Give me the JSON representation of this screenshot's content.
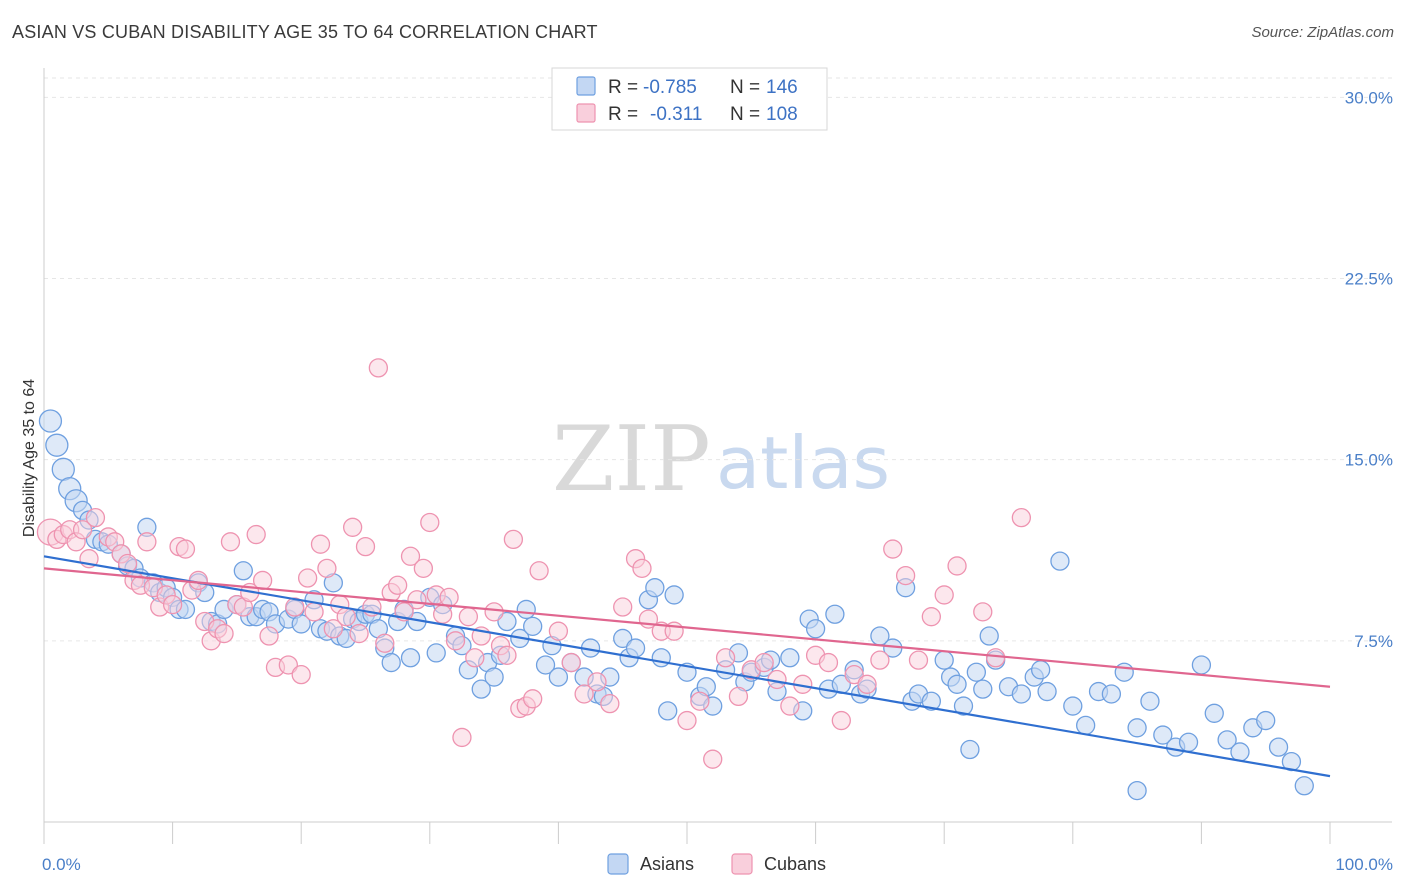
{
  "title": "ASIAN VS CUBAN DISABILITY AGE 35 TO 64 CORRELATION CHART",
  "source": "Source: ZipAtlas.com",
  "watermark": {
    "zip": "ZIP",
    "atlas": "atlas"
  },
  "colors": {
    "asian": "#6fa0e0",
    "asian_fill": "#c3d7f3",
    "asian_line": "#2f6fd0",
    "cuban": "#ee93b0",
    "cuban_fill": "#f9cfdc",
    "cuban_line": "#e0668f"
  },
  "legend": {
    "rows": [
      {
        "r_label": "R =",
        "r_value": "-0.785",
        "n_label": "N =",
        "n_value": "146"
      },
      {
        "r_label": "R =",
        "r_value": "-0.311",
        "n_label": "N =",
        "n_value": "108"
      }
    ]
  },
  "bottom_legend": [
    "Asians",
    "Cubans"
  ],
  "chart_data": {
    "type": "scatter",
    "title": "ASIAN VS CUBAN DISABILITY AGE 35 TO 64 CORRELATION CHART",
    "xlabel": "",
    "ylabel": "Disability Age 35 to 64",
    "xlim": [
      0,
      100
    ],
    "ylim": [
      0,
      30
    ],
    "x_tick_labels": [
      "0.0%",
      "100.0%"
    ],
    "y_ticks": [
      7.5,
      15.0,
      22.5,
      30.0
    ],
    "y_tick_labels": [
      "7.5%",
      "15.0%",
      "22.5%",
      "30.0%"
    ],
    "grid": true,
    "legend_position": "top-center",
    "series": [
      {
        "name": "Asians",
        "R": -0.785,
        "N": 146,
        "trend": {
          "x": [
            0,
            100
          ],
          "y": [
            11.0,
            1.9
          ]
        },
        "points": [
          [
            0.5,
            16.6
          ],
          [
            1,
            15.6
          ],
          [
            1.5,
            14.6
          ],
          [
            2,
            13.8
          ],
          [
            2.5,
            13.3
          ],
          [
            3,
            12.9
          ],
          [
            3.5,
            12.5
          ],
          [
            4,
            11.7
          ],
          [
            4.5,
            11.6
          ],
          [
            5,
            11.5
          ],
          [
            6,
            11.1
          ],
          [
            6.5,
            10.6
          ],
          [
            7,
            10.5
          ],
          [
            7.5,
            10.1
          ],
          [
            8,
            12.2
          ],
          [
            8.5,
            9.9
          ],
          [
            9,
            9.5
          ],
          [
            9.5,
            9.7
          ],
          [
            10,
            9.3
          ],
          [
            10.5,
            8.8
          ],
          [
            11,
            8.8
          ],
          [
            12,
            9.9
          ],
          [
            12.5,
            9.5
          ],
          [
            13,
            8.3
          ],
          [
            13.5,
            8.2
          ],
          [
            14,
            8.8
          ],
          [
            15,
            9.0
          ],
          [
            15.5,
            10.4
          ],
          [
            16,
            8.5
          ],
          [
            16.5,
            8.5
          ],
          [
            17,
            8.8
          ],
          [
            17.5,
            8.7
          ],
          [
            18,
            8.2
          ],
          [
            19,
            8.4
          ],
          [
            19.5,
            8.8
          ],
          [
            20,
            8.2
          ],
          [
            21,
            9.2
          ],
          [
            21.5,
            8.0
          ],
          [
            22,
            7.9
          ],
          [
            22.5,
            9.9
          ],
          [
            23,
            7.7
          ],
          [
            23.5,
            7.6
          ],
          [
            24,
            8.4
          ],
          [
            24.5,
            8.3
          ],
          [
            25,
            8.6
          ],
          [
            25.5,
            8.6
          ],
          [
            26,
            8.0
          ],
          [
            26.5,
            7.2
          ],
          [
            27,
            6.6
          ],
          [
            27.5,
            8.3
          ],
          [
            28,
            8.8
          ],
          [
            28.5,
            6.8
          ],
          [
            29,
            8.3
          ],
          [
            30,
            9.3
          ],
          [
            30.5,
            7.0
          ],
          [
            31,
            9.0
          ],
          [
            32,
            7.7
          ],
          [
            32.5,
            7.3
          ],
          [
            33,
            6.3
          ],
          [
            34,
            5.5
          ],
          [
            34.5,
            6.6
          ],
          [
            35,
            6.0
          ],
          [
            35.5,
            6.9
          ],
          [
            36,
            8.3
          ],
          [
            37,
            7.6
          ],
          [
            37.5,
            8.8
          ],
          [
            38,
            8.1
          ],
          [
            39,
            6.5
          ],
          [
            39.5,
            7.3
          ],
          [
            40,
            6.0
          ],
          [
            41,
            6.6
          ],
          [
            42,
            6.0
          ],
          [
            42.5,
            7.2
          ],
          [
            43,
            5.3
          ],
          [
            43.5,
            5.2
          ],
          [
            44,
            6.0
          ],
          [
            45,
            7.6
          ],
          [
            45.5,
            6.8
          ],
          [
            46,
            7.2
          ],
          [
            47,
            9.2
          ],
          [
            47.5,
            9.7
          ],
          [
            48,
            6.8
          ],
          [
            48.5,
            4.6
          ],
          [
            49,
            9.4
          ],
          [
            50,
            6.2
          ],
          [
            51,
            5.2
          ],
          [
            51.5,
            5.6
          ],
          [
            52,
            4.8
          ],
          [
            53,
            6.3
          ],
          [
            54,
            7.0
          ],
          [
            54.5,
            5.8
          ],
          [
            55,
            6.2
          ],
          [
            56,
            6.4
          ],
          [
            56.5,
            6.7
          ],
          [
            57,
            5.4
          ],
          [
            58,
            6.8
          ],
          [
            59,
            4.6
          ],
          [
            59.5,
            8.4
          ],
          [
            60,
            8.0
          ],
          [
            61,
            5.5
          ],
          [
            61.5,
            8.6
          ],
          [
            62,
            5.7
          ],
          [
            63,
            6.3
          ],
          [
            63.5,
            5.3
          ],
          [
            64,
            5.5
          ],
          [
            65,
            7.7
          ],
          [
            66,
            7.2
          ],
          [
            67,
            9.7
          ],
          [
            67.5,
            5.0
          ],
          [
            68,
            5.3
          ],
          [
            69,
            5.0
          ],
          [
            70,
            6.7
          ],
          [
            70.5,
            6.0
          ],
          [
            71,
            5.7
          ],
          [
            71.5,
            4.8
          ],
          [
            72,
            3.0
          ],
          [
            72.5,
            6.2
          ],
          [
            73,
            5.5
          ],
          [
            73.5,
            7.7
          ],
          [
            74,
            6.7
          ],
          [
            75,
            5.6
          ],
          [
            76,
            5.3
          ],
          [
            77,
            6.0
          ],
          [
            77.5,
            6.3
          ],
          [
            78,
            5.4
          ],
          [
            79,
            10.8
          ],
          [
            80,
            4.8
          ],
          [
            81,
            4.0
          ],
          [
            82,
            5.4
          ],
          [
            83,
            5.3
          ],
          [
            84,
            6.2
          ],
          [
            85,
            3.9
          ],
          [
            86,
            5.0
          ],
          [
            87,
            3.6
          ],
          [
            88,
            3.1
          ],
          [
            89,
            3.3
          ],
          [
            90,
            6.5
          ],
          [
            91,
            4.5
          ],
          [
            92,
            3.4
          ],
          [
            93,
            2.9
          ],
          [
            94,
            3.9
          ],
          [
            95,
            4.2
          ],
          [
            96,
            3.1
          ],
          [
            97,
            2.5
          ],
          [
            98,
            1.5
          ],
          [
            85,
            1.3
          ]
        ]
      },
      {
        "name": "Cubans",
        "R": -0.311,
        "N": 108,
        "trend": {
          "x": [
            0,
            100
          ],
          "y": [
            10.5,
            5.6
          ]
        },
        "points": [
          [
            0.5,
            12.0
          ],
          [
            1,
            11.7
          ],
          [
            1.5,
            11.9
          ],
          [
            2,
            12.1
          ],
          [
            2.5,
            11.6
          ],
          [
            3,
            12.1
          ],
          [
            3.5,
            10.9
          ],
          [
            4,
            12.6
          ],
          [
            5,
            11.8
          ],
          [
            5.5,
            11.6
          ],
          [
            6,
            11.1
          ],
          [
            6.5,
            10.7
          ],
          [
            7,
            10.0
          ],
          [
            7.5,
            9.8
          ],
          [
            8,
            11.6
          ],
          [
            8.5,
            9.7
          ],
          [
            9,
            8.9
          ],
          [
            9.5,
            9.4
          ],
          [
            10,
            9.0
          ],
          [
            10.5,
            11.4
          ],
          [
            11,
            11.3
          ],
          [
            11.5,
            9.6
          ],
          [
            12,
            10.0
          ],
          [
            12.5,
            8.3
          ],
          [
            13,
            7.5
          ],
          [
            13.5,
            8.0
          ],
          [
            14,
            7.8
          ],
          [
            14.5,
            11.6
          ],
          [
            15,
            9.0
          ],
          [
            15.5,
            8.9
          ],
          [
            16,
            9.5
          ],
          [
            16.5,
            11.9
          ],
          [
            17,
            10.0
          ],
          [
            17.5,
            7.7
          ],
          [
            18,
            6.4
          ],
          [
            19,
            6.5
          ],
          [
            19.5,
            8.9
          ],
          [
            20,
            6.1
          ],
          [
            20.5,
            10.1
          ],
          [
            21,
            8.7
          ],
          [
            21.5,
            11.5
          ],
          [
            22,
            10.5
          ],
          [
            22.5,
            8.0
          ],
          [
            23,
            9.0
          ],
          [
            23.5,
            8.5
          ],
          [
            24,
            12.2
          ],
          [
            24.5,
            7.8
          ],
          [
            25,
            11.4
          ],
          [
            25.5,
            8.9
          ],
          [
            26,
            18.8
          ],
          [
            26.5,
            7.4
          ],
          [
            27,
            9.5
          ],
          [
            27.5,
            9.8
          ],
          [
            28,
            8.7
          ],
          [
            28.5,
            11.0
          ],
          [
            29,
            9.2
          ],
          [
            29.5,
            10.5
          ],
          [
            30,
            12.4
          ],
          [
            30.5,
            9.4
          ],
          [
            31,
            8.6
          ],
          [
            31.5,
            9.3
          ],
          [
            32,
            7.5
          ],
          [
            32.5,
            3.5
          ],
          [
            33,
            8.5
          ],
          [
            33.5,
            6.8
          ],
          [
            34,
            7.7
          ],
          [
            35,
            8.7
          ],
          [
            35.5,
            7.3
          ],
          [
            36,
            6.9
          ],
          [
            36.5,
            11.7
          ],
          [
            37,
            4.7
          ],
          [
            37.5,
            4.8
          ],
          [
            38,
            5.1
          ],
          [
            38.5,
            10.4
          ],
          [
            40,
            7.9
          ],
          [
            41,
            6.6
          ],
          [
            42,
            5.3
          ],
          [
            43,
            5.8
          ],
          [
            44,
            4.9
          ],
          [
            45,
            8.9
          ],
          [
            46,
            10.9
          ],
          [
            46.5,
            10.5
          ],
          [
            47,
            8.4
          ],
          [
            48,
            7.9
          ],
          [
            49,
            7.9
          ],
          [
            50,
            4.2
          ],
          [
            51,
            5.0
          ],
          [
            52,
            2.6
          ],
          [
            53,
            6.8
          ],
          [
            54,
            5.2
          ],
          [
            55,
            6.3
          ],
          [
            56,
            6.6
          ],
          [
            57,
            5.9
          ],
          [
            58,
            4.8
          ],
          [
            59,
            5.7
          ],
          [
            60,
            6.9
          ],
          [
            61,
            6.6
          ],
          [
            62,
            4.2
          ],
          [
            63,
            6.1
          ],
          [
            64,
            5.7
          ],
          [
            65,
            6.7
          ],
          [
            66,
            11.3
          ],
          [
            67,
            10.2
          ],
          [
            68,
            6.7
          ],
          [
            69,
            8.5
          ],
          [
            70,
            9.4
          ],
          [
            71,
            10.6
          ],
          [
            73,
            8.7
          ],
          [
            74,
            6.8
          ],
          [
            76,
            12.6
          ]
        ]
      }
    ]
  }
}
